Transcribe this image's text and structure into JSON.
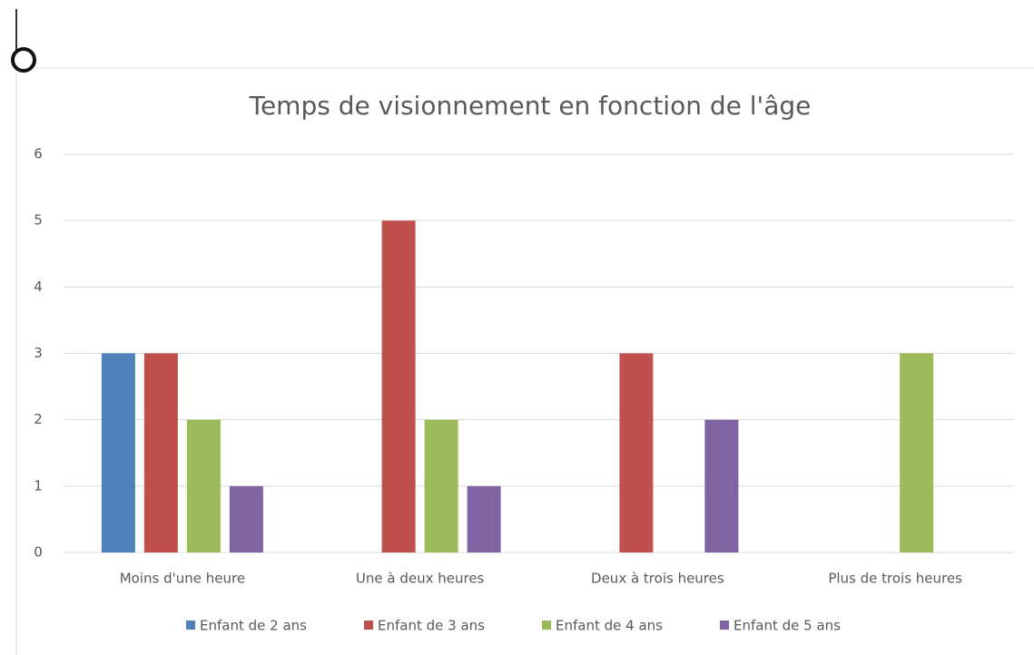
{
  "chart_data": {
    "type": "bar",
    "title": "Temps de visionnement en fonction de l'âge",
    "categories": [
      "Moins d'une heure",
      "Une à deux heures",
      "Deux à trois heures",
      "Plus de trois heures"
    ],
    "series": [
      {
        "name": "Enfant de 2 ans",
        "color": "#4f81bd",
        "values": [
          3,
          0,
          0,
          0
        ]
      },
      {
        "name": "Enfant de 3 ans",
        "color": "#c0504d",
        "values": [
          3,
          5,
          3,
          0
        ]
      },
      {
        "name": "Enfant de 4 ans",
        "color": "#9bbb59",
        "values": [
          2,
          2,
          0,
          3
        ]
      },
      {
        "name": "Enfant de 5 ans",
        "color": "#8064a2",
        "values": [
          1,
          1,
          2,
          0
        ]
      }
    ],
    "ylim": [
      0,
      6
    ],
    "yticks": [
      0,
      1,
      2,
      3,
      4,
      5,
      6
    ],
    "grid": true,
    "legend": "bottom"
  }
}
